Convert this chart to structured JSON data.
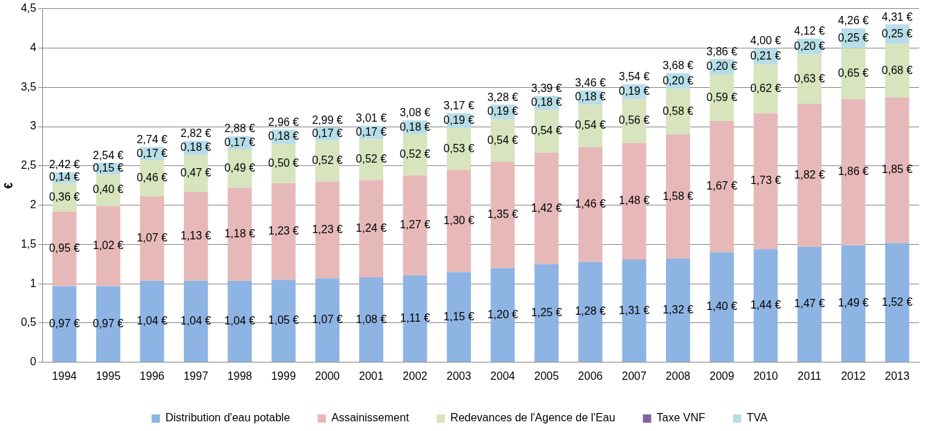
{
  "chart_data": {
    "type": "bar",
    "stacked": true,
    "ylabel": "€",
    "categories": [
      "1994",
      "1995",
      "1996",
      "1997",
      "1998",
      "1999",
      "2000",
      "2001",
      "2002",
      "2003",
      "2004",
      "2005",
      "2006",
      "2007",
      "2008",
      "2009",
      "2010",
      "2011",
      "2012",
      "2013"
    ],
    "series": [
      {
        "name": "Distribution d'eau potable",
        "color": "#8eb4e3",
        "values": [
          0.97,
          0.97,
          1.04,
          1.04,
          1.04,
          1.05,
          1.07,
          1.08,
          1.11,
          1.15,
          1.2,
          1.25,
          1.28,
          1.31,
          1.32,
          1.4,
          1.44,
          1.47,
          1.49,
          1.52
        ],
        "value_labels": [
          "0,97 €",
          "0,97 €",
          "1,04 €",
          "1,04 €",
          "1,04 €",
          "1,05 €",
          "1,07 €",
          "1,08 €",
          "1,11 €",
          "1,15 €",
          "1,20 €",
          "1,25 €",
          "1,28 €",
          "1,31 €",
          "1,32 €",
          "1,40 €",
          "1,44 €",
          "1,47 €",
          "1,49 €",
          "1,52 €"
        ]
      },
      {
        "name": "Assainissement",
        "color": "#e6b9b8",
        "values": [
          0.95,
          1.02,
          1.07,
          1.13,
          1.18,
          1.23,
          1.23,
          1.24,
          1.27,
          1.3,
          1.35,
          1.42,
          1.46,
          1.48,
          1.58,
          1.67,
          1.73,
          1.82,
          1.86,
          1.85
        ],
        "value_labels": [
          "0,95 €",
          "1,02 €",
          "1,07 €",
          "1,13 €",
          "1,18 €",
          "1,23 €",
          "1,23 €",
          "1,24 €",
          "1,27 €",
          "1,30 €",
          "1,35 €",
          "1,42 €",
          "1,46 €",
          "1,48 €",
          "1,58 €",
          "1,67 €",
          "1,73 €",
          "1,82 €",
          "1,86 €",
          "1,85 €"
        ]
      },
      {
        "name": "Redevances de l'Agence de l'Eau",
        "color": "#d7e4bd",
        "values": [
          0.36,
          0.4,
          0.46,
          0.47,
          0.49,
          0.5,
          0.52,
          0.52,
          0.52,
          0.53,
          0.54,
          0.54,
          0.54,
          0.56,
          0.58,
          0.59,
          0.62,
          0.63,
          0.65,
          0.68
        ],
        "value_labels": [
          "0,36 €",
          "0,40 €",
          "0,46 €",
          "0,47 €",
          "0,49 €",
          "0,50 €",
          "0,52 €",
          "0,52 €",
          "0,52 €",
          "0,53 €",
          "0,54 €",
          "0,54 €",
          "0,54 €",
          "0,56 €",
          "0,58 €",
          "0,59 €",
          "0,62 €",
          "0,63 €",
          "0,65 €",
          "0,68 €"
        ]
      },
      {
        "name": "Taxe VNF",
        "color": "#8064a2",
        "values": [
          0,
          0,
          0,
          0,
          0,
          0,
          0,
          0,
          0,
          0,
          0,
          0,
          0,
          0,
          0,
          0,
          0,
          0,
          0,
          0
        ]
      },
      {
        "name": "TVA",
        "color": "#b7dee8",
        "values": [
          0.14,
          0.15,
          0.17,
          0.18,
          0.17,
          0.18,
          0.17,
          0.17,
          0.18,
          0.19,
          0.19,
          0.18,
          0.18,
          0.19,
          0.2,
          0.2,
          0.21,
          0.2,
          0.25,
          0.25
        ],
        "value_labels": [
          "0,14 €",
          "0,15 €",
          "0,17 €",
          "0,18 €",
          "0,17 €",
          "0,18 €",
          "0,17 €",
          "0,17 €",
          "0,18 €",
          "0,19 €",
          "0,19 €",
          "0,18 €",
          "0,18 €",
          "0,19 €",
          "0,20 €",
          "0,20 €",
          "0,21 €",
          "0,20 €",
          "0,25 €",
          "0,25 €"
        ]
      }
    ],
    "totals": [
      "2,42 €",
      "2,54 €",
      "2,74 €",
      "2,82 €",
      "2,88 €",
      "2,96 €",
      "2,99 €",
      "3,01 €",
      "3,08 €",
      "3,17 €",
      "3,28 €",
      "3,39 €",
      "3,46 €",
      "3,54 €",
      "3,68 €",
      "3,86 €",
      "4,00 €",
      "4,12 €",
      "4,26 €",
      "4,31 €"
    ],
    "ylim": [
      0,
      4.5
    ],
    "yticks": [
      0,
      {
        "value": 0.5,
        "label": "0,5"
      },
      1,
      {
        "value": 1.5,
        "label": "1,5"
      },
      2,
      {
        "value": 2.5,
        "label": "2,5"
      },
      3,
      {
        "value": 3.5,
        "label": "3,5"
      },
      4,
      {
        "value": 4.5,
        "label": "4,5"
      }
    ],
    "grid": "y",
    "legend": "bottom"
  }
}
